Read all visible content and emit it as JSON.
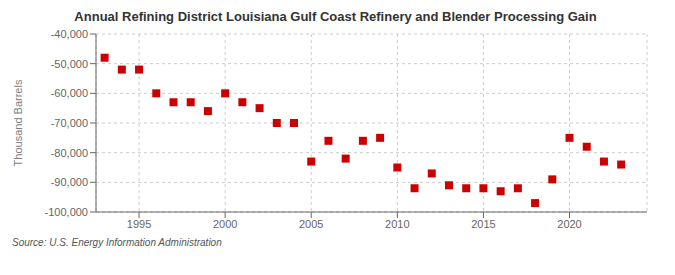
{
  "chart_data": {
    "type": "scatter",
    "title": "Annual Refining District Louisiana Gulf Coast Refinery and Blender Processing Gain",
    "ylabel": "Thousand Barrels",
    "source": "Source: U.S. Energy Information Administration",
    "x": [
      1993,
      1994,
      1995,
      1996,
      1997,
      1998,
      1999,
      2000,
      2001,
      2002,
      2003,
      2004,
      2005,
      2006,
      2007,
      2008,
      2009,
      2010,
      2011,
      2012,
      2013,
      2014,
      2015,
      2016,
      2017,
      2018,
      2019,
      2020,
      2021,
      2022,
      2023
    ],
    "values": [
      -48000,
      -52000,
      -52000,
      -60000,
      -63000,
      -63000,
      -66000,
      -60000,
      -63000,
      -65000,
      -70000,
      -70000,
      -83000,
      -76000,
      -82000,
      -76000,
      -75000,
      -85000,
      -92000,
      -87000,
      -91000,
      -92000,
      -92000,
      -93000,
      -92000,
      -97000,
      -89000,
      -75000,
      -78000,
      -83000,
      -84000
    ],
    "color": "#cc0000",
    "marker": "square",
    "xlim": [
      1992.5,
      2024.5
    ],
    "xticks": [
      1995,
      2000,
      2005,
      2010,
      2015,
      2020
    ],
    "ylim": [
      -100000,
      -40000
    ],
    "yticks": [
      {
        "value": -100000,
        "label": "-100,000"
      },
      {
        "value": -90000,
        "label": "-90,000"
      },
      {
        "value": -80000,
        "label": "-80,000"
      },
      {
        "value": -70000,
        "label": "-70,000"
      },
      {
        "value": -60000,
        "label": "-60,000"
      },
      {
        "value": -50000,
        "label": "-50,000"
      },
      {
        "value": -40000,
        "label": "-40,000"
      }
    ],
    "grid": true
  }
}
